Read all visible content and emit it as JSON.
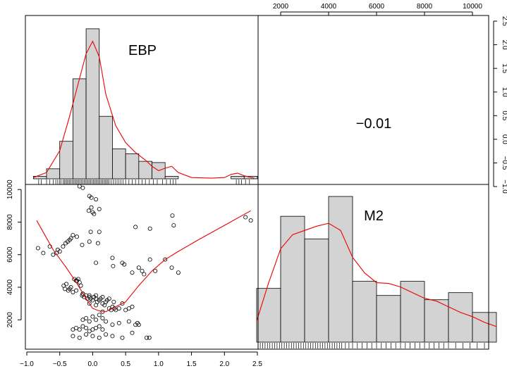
{
  "chart_data": {
    "type": "scatter",
    "title": "",
    "variables": [
      "EBP",
      "M2"
    ],
    "correlation": {
      "pair": [
        "EBP",
        "M2"
      ],
      "value": "−0.01"
    },
    "axes": {
      "ebp_x": {
        "range": [
          -1.0,
          2.5
        ],
        "ticks": [
          -1.0,
          -0.5,
          0.0,
          0.5,
          1.0,
          1.5,
          2.0,
          2.5
        ],
        "tick_labels": [
          "−1.0",
          "−0.5",
          "0.0",
          "0.5",
          "1.0",
          "1.5",
          "2.0",
          "2.5"
        ]
      },
      "m2_x": {
        "range": [
          0,
          11000
        ],
        "ticks": [
          2000,
          4000,
          6000,
          8000,
          10000
        ],
        "tick_labels": [
          "2000",
          "4000",
          "6000",
          "8000",
          "10000"
        ]
      },
      "m2_y": {
        "range": [
          500,
          10700
        ],
        "ticks": [
          2000,
          4000,
          6000,
          8000,
          10000
        ],
        "tick_labels": [
          "2000",
          "4000",
          "6000",
          "8000",
          "10000"
        ]
      },
      "ebp_y": {
        "range": [
          -1.0,
          2.5
        ],
        "ticks": [
          -1.0,
          -0.5,
          0.0,
          0.5,
          1.0,
          1.5,
          2.0,
          2.5
        ],
        "tick_labels": [
          "−1.0",
          "−0.5",
          "0.0",
          "0.5",
          "1.0",
          "1.5",
          "2.0",
          "2.5"
        ]
      }
    },
    "ebp_histogram": {
      "breaks": [
        -0.9,
        -0.7,
        -0.5,
        -0.3,
        -0.1,
        0.1,
        0.3,
        0.5,
        0.7,
        0.9,
        1.1,
        1.3,
        2.1,
        2.3,
        2.5
      ],
      "counts": [
        0.04,
        0.16,
        0.6,
        1.6,
        2.4,
        1.0,
        0.48,
        0.4,
        0.28,
        0.26,
        0.04,
        0.0,
        0.04,
        0.04
      ],
      "density_x": [
        -0.9,
        -0.7,
        -0.5,
        -0.35,
        -0.2,
        -0.1,
        0.0,
        0.1,
        0.2,
        0.35,
        0.5,
        0.65,
        0.8,
        0.9,
        1.0,
        1.1,
        1.2,
        1.3,
        1.5,
        1.8,
        2.0,
        2.1,
        2.2,
        2.3,
        2.45
      ],
      "density_y": [
        0.02,
        0.1,
        0.45,
        1.0,
        1.6,
        2.0,
        2.2,
        1.95,
        1.35,
        0.85,
        0.58,
        0.42,
        0.3,
        0.2,
        0.13,
        0.17,
        0.2,
        0.1,
        0.02,
        0.01,
        0.02,
        0.07,
        0.09,
        0.05,
        0.01
      ]
    },
    "m2_histogram": {
      "breaks": [
        1000,
        2000,
        3000,
        4000,
        5000,
        6000,
        7000,
        8000,
        9000,
        10000,
        11000
      ],
      "counts": [
        3800,
        8900,
        7300,
        10300,
        4300,
        3300,
        4300,
        3000,
        3500,
        2100
      ],
      "density_x": [
        1000,
        1500,
        2000,
        2500,
        3000,
        3500,
        4000,
        4500,
        5000,
        5500,
        6000,
        6500,
        7000,
        7500,
        8000,
        8500,
        9000,
        9500,
        10000,
        10500,
        11000
      ],
      "density_y": [
        1500,
        4200,
        6600,
        7600,
        7900,
        8200,
        8400,
        7900,
        6000,
        4900,
        4200,
        4150,
        3900,
        3500,
        3100,
        2900,
        2500,
        2100,
        1800,
        1400,
        1100
      ]
    },
    "scatter_points": {
      "x": [
        -0.05,
        -0.02,
        0.05,
        -0.15,
        -0.2,
        0.1,
        0.0,
        -0.06,
        -0.02,
        0.02,
        -0.03,
        0.1,
        -0.05,
        0.08,
        0.65,
        0.87,
        1.21,
        1.23,
        2.32,
        2.4,
        -0.3,
        -0.33,
        -0.24,
        -0.16,
        -0.35,
        -0.38,
        -0.41,
        -0.45,
        -0.5,
        -0.53,
        -0.6,
        -0.75,
        -0.83,
        -0.65,
        -0.55,
        0.05,
        0.45,
        0.48,
        0.3,
        0.31,
        0.7,
        0.75,
        0.78,
        0.87,
        0.95,
        0.6,
        1.1,
        1.2,
        1.3,
        -0.44,
        -0.42,
        -0.4,
        -0.37,
        -0.33,
        -0.3,
        -0.28,
        -0.25,
        -0.24,
        -0.22,
        -0.2,
        -0.18,
        -0.16,
        -0.15,
        -0.13,
        -0.1,
        -0.08,
        -0.05,
        -0.03,
        0.0,
        0.02,
        0.05,
        0.07,
        0.1,
        0.12,
        0.15,
        0.18,
        0.2,
        0.22,
        0.25,
        0.28,
        0.3,
        0.33,
        0.35,
        0.4,
        0.45,
        0.5,
        0.55,
        0.6,
        -0.15,
        -0.1,
        -0.05,
        0.0,
        0.05,
        0.1,
        0.15,
        0.2,
        -0.3,
        -0.25,
        -0.2,
        -0.15,
        -0.1,
        -0.05,
        0.0,
        0.05,
        0.1,
        0.15,
        0.3,
        0.4,
        0.55,
        0.65,
        -0.3,
        -0.2,
        -0.1,
        0.0,
        0.1,
        0.2,
        0.3,
        0.45,
        0.6,
        0.68,
        0.7,
        0.82,
        0.86,
        -0.35,
        -0.25,
        -0.15,
        -0.05,
        0.05,
        0.15,
        0.25,
        -0.05,
        0.05,
        0.15,
        0.32
      ],
      "y": [
        9600,
        9500,
        9400,
        10100,
        10200,
        8800,
        8600,
        8700,
        8900,
        8500,
        7400,
        7400,
        6800,
        6700,
        7700,
        7600,
        8400,
        7800,
        8300,
        8100,
        7200,
        7000,
        7100,
        6600,
        6900,
        6800,
        6700,
        6500,
        6200,
        6300,
        6000,
        6100,
        6400,
        6500,
        6100,
        5500,
        5500,
        5400,
        5800,
        5300,
        5200,
        5000,
        4800,
        5700,
        5000,
        4900,
        5700,
        5200,
        4900,
        4100,
        3900,
        4200,
        3800,
        4000,
        3700,
        4500,
        4400,
        4400,
        4500,
        4300,
        4100,
        3500,
        3600,
        3400,
        3500,
        3300,
        3400,
        3300,
        3200,
        3400,
        3300,
        3100,
        3200,
        3300,
        3000,
        2900,
        3100,
        3200,
        2700,
        2600,
        2800,
        2700,
        2600,
        2700,
        3000,
        2600,
        2700,
        2800,
        2000,
        2100,
        1900,
        2200,
        2000,
        2300,
        2100,
        1900,
        1400,
        1500,
        1400,
        1600,
        1500,
        1300,
        1400,
        1500,
        1600,
        1400,
        1700,
        1800,
        1900,
        1700,
        1000,
        900,
        1100,
        1000,
        900,
        1100,
        1000,
        900,
        1200,
        1800,
        1700,
        900,
        900,
        3900,
        3800,
        3600,
        3500,
        3500,
        3400,
        3300,
        3000,
        2900,
        2500,
        3100
      ]
    },
    "loess": {
      "x": [
        -0.85,
        -0.6,
        -0.4,
        -0.25,
        -0.1,
        0.0,
        0.1,
        0.2,
        0.35,
        0.5,
        0.7,
        0.9,
        1.1,
        1.3,
        1.6,
        2.0,
        2.4
      ],
      "y": [
        8100,
        6300,
        5200,
        4300,
        3300,
        2700,
        2550,
        2500,
        2800,
        3100,
        4100,
        5000,
        5700,
        6200,
        6900,
        7800,
        8700
      ]
    },
    "rug_ebp": [
      -0.82,
      -0.78,
      -0.7,
      -0.65,
      -0.6,
      -0.56,
      -0.53,
      -0.5,
      -0.48,
      -0.45,
      -0.43,
      -0.41,
      -0.39,
      -0.37,
      -0.35,
      -0.33,
      -0.31,
      -0.29,
      -0.27,
      -0.25,
      -0.23,
      -0.21,
      -0.19,
      -0.17,
      -0.15,
      -0.13,
      -0.11,
      -0.09,
      -0.07,
      -0.05,
      -0.03,
      -0.01,
      0.01,
      0.03,
      0.05,
      0.07,
      0.09,
      0.11,
      0.13,
      0.15,
      0.17,
      0.19,
      0.21,
      0.23,
      0.25,
      0.28,
      0.31,
      0.34,
      0.37,
      0.4,
      0.43,
      0.46,
      0.5,
      0.55,
      0.6,
      0.65,
      0.7,
      0.75,
      0.8,
      0.86,
      0.92,
      0.98,
      1.06,
      1.12,
      1.18,
      1.22,
      1.26,
      2.18,
      2.22,
      2.26,
      2.32,
      2.38
    ],
    "rug_m2": [
      1150,
      1250,
      1350,
      1450,
      1550,
      1650,
      1750,
      1850,
      1950,
      2050,
      2150,
      2250,
      2350,
      2450,
      2550,
      2650,
      2750,
      2850,
      2950,
      3050,
      3150,
      3250,
      3350,
      3450,
      3550,
      3650,
      3750,
      3850,
      3950,
      4050,
      4150,
      4250,
      4350,
      4450,
      4550,
      4700,
      4850,
      5000,
      5200,
      5400,
      5600,
      5800,
      6000,
      6200,
      6400,
      6600,
      6800,
      7000,
      7200,
      7400,
      7600,
      7800,
      8000,
      8200,
      8400,
      8600,
      8800,
      9000,
      9300,
      9600,
      9900,
      10200,
      10500
    ]
  }
}
